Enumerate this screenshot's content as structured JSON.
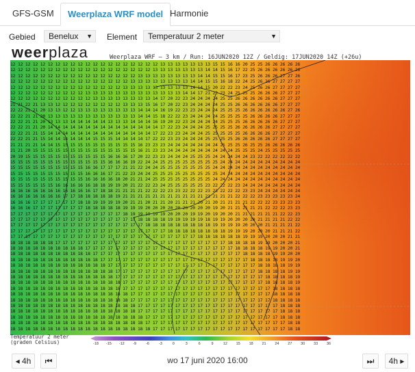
{
  "tabs": [
    {
      "label": "GFS-GSM",
      "active": false
    },
    {
      "label": "Weerplaza WRF model",
      "active": true
    },
    {
      "label": "Harmonie",
      "active": false
    }
  ],
  "controls": {
    "region_label": "Gebied",
    "region_value": "Benelux",
    "element_label": "Element",
    "element_value": "Temperatuur 2 meter"
  },
  "logo": {
    "bold": "weer",
    "rest": "plaza"
  },
  "run_info": "Weerplaza WRF — 3 km / Run: 16JUN2020 12Z / Geldig: 17JUN2020 14Z (+26u)",
  "map": {
    "rows": [
      "12 12 12 12 12 12 12 12 12 12 12 12 12 12 12 12 12 12 12 12 13 13 13 13 13 13 13 15 15 16 16 20 25 25 26 26 26 26 26",
      "12 12 12 12 12 12 12 12 12 12 12 12 12 12 12 12 12 12 12 13 13 13 13 13 13 13 14 14 15 16 17 22 25 26 26 26 26 26 26",
      "12 12 12 12 12 12 12 12 12 12 12 12 12 12 12 12 12 13 13 13 13 13 13 13 13 14 14 15 15 16 17 23 25 26 26 26 27 27 26",
      "12 12 12 12 12 12 12 12 12 12 12 12 12 12 12 12 13 13 13 13 13 13 13 13 14 14 15 15 16 18 22 24 25 26 26 27 27 27 27",
      "12 12 12 12 12 12 12 12 12 12 12 12 12 12 12 13 13 13 13 13 13 13 13 13 14 14 15 20 22 22 23 24 25 26 26 27 27 27 27",
      "12 12 12 12 12 12 12 12 12 12 13 13 13 13 13 13 13 13 13 13 13 13 13 14 14 17 21 22 23 24 25 25 25 26 26 26 27 27 27",
      "12 12 12 12 12 12 12 12 12 12 12 13 13 13 13 13 13 13 13 14 17 20 22 23 24 24 24 24 25 25 26 26 26 26 26 26 27 27 27",
      "21 21 22 21 13 13 12 12 12 12 12 12 12 12 12 13 13 13 15 16 17 20 22 23 24 24 24 24 25 25 26 26 26 26 26 26 27 27 27",
      "22 22 21 21 20 13 13 12 12 13 13 13 13 13 13 13 13 14 14 14 16 19 22 23 23 24 24 24 25 25 25 26 26 26 26 26 26 27 26",
      "22 22 21 21 20 13 13 13 13 13 13 13 13 13 13 13 13 14 14 15 18 22 22 23 24 24 24 24 25 25 25 25 26 26 26 26 27 27 27",
      "22 22 21 21 20 13 13 13 14 14 14 14 14 13 13 13 14 14 14 16 19 20 22 23 24 24 24 24 25 25 25 26 26 26 26 26 27 27 27",
      "22 22 21 21 20 14 14 14 14 14 14 14 14 14 14 14 14 14 14 14 17 22 23 24 24 24 25 25 25 25 26 26 26 26 26 27 27 27 27",
      "22 22 21 21 15 14 14 14 14 14 14 14 14 14 14 14 14 14 14 17 22 23 23 24 24 24 25 25 25 25 25 26 26 26 26 27 27 27 27",
      "22 22 21 21 15 14 14 14 14 14 14 15 15 15 14 14 14 14 17 22 22 23 23 24 24 24 25 25 25 25 26 26 26 26 26 27 27 27 27",
      "21 21 21 21 14 14 15 15 15 15 15 15 15 15 15 15 15 16 23 23 23 24 24 24 24 24 24 24 25 25 25 26 25 25 26 26 26 26 26",
      "21 21 20 15 15 15 15 15 15 15 15 15 15 15 15 15 15 16 21 23 23 24 24 24 24 24 24 24 24 24 25 25 25 24 25 25 25 25 25",
      "20 19 15 15 15 15 15 15 15 15 15 15 15 16 16 16 17 20 22 23 23 24 24 24 25 25 25 24 24 24 24 24 23 22 22 22 22 22 22",
      "15 15 15 15 15 15 15 15 15 15 15 15 15 16 16 16 19 22 24 24 25 25 25 25 25 25 25 25 24 24 24 24 24 24 24 24 24 24 24",
      "15 15 15 15 15 15 15 15 15 15 16 16 17 17 17 21 21 22 24 24 25 25 25 25 25 25 25 24 24 24 24 24 24 24 24 24 24 24 24",
      "15 15 15 15 15 15 15 15 15 15 16 16 16 17 21 22 23 24 24 25 25 25 25 25 25 25 25 25 24 24 24 24 24 24 24 24 24 24 24",
      "15 15 15 15 15 15 15 15 15 15 16 16 16 16 18 20 21 21 24 25 25 25 25 25 25 25 25 24 24 24 24 24 24 24 24 24 24 24 24",
      "15 15 15 15 15 15 16 16 16 16 16 18 18 19 19 20 21 22 22 23 24 25 25 25 25 25 23 22 22 22 23 24 24 24 24 24 24 24 24",
      "16 16 16 16 16 16 16 16 16 16 16 17 18 18 21 21 21 21 22 22 22 23 23 22 22 22 23 23 22 22 22 23 23 24 24 24 24 24 24",
      "16 16 16 16 16 16 16 17 17 18 18 18 18 18 19 21 21 21 21 21 21 21 21 21 21 21 21 21 21 21 22 22 22 23 23 23 23 23 24",
      "16 16 16 17 17 17 17 17 17 18 18 19 19 19 19 20 21 21 20 21 21 20 21 21 21 20 21 20 21 21 21 21 22 22 22 23 23 23 23",
      "16 16 16 17 17 17 17 17 17 17 18 18 18 18 18 19 19 19 20 20 20 20 20 20 20 20 20 19 20 21 21 21 21 21 22 22 22 23 23",
      "17 17 17 17 17 17 17 17 17 17 17 17 17 17 17 18 19 19 19 19 19 20 20 20 19 19 20 19 20 20 21 21 21 21 21 21 22 22 23",
      "17 17 17 17 17 17 17 17 17 17 17 17 17 17 17 17 17 18 18 18 18 19 19 19 19 19 18 19 19 20 20 20 20 21 21 21 21 22 22",
      "17 17 17 17 17 17 17 17 17 17 17 17 17 17 17 17 17 17 18 18 18 18 18 18 18 18 18 19 19 19 19 20 20 20 21 21 21 21 22",
      "17 17 17 17 17 17 17 17 17 17 17 17 17 17 17 17 17 17 17 17 17 18 18 18 18 18 18 18 18 19 19 19 20 20 20 21 21 21 22",
      "17 17 17 17 17 17 17 17 17 17 17 17 17 17 17 17 17 17 17 17 17 17 17 17 17 18 18 18 18 18 18 19 19 19 20 20 20 21 21",
      "18 18 18 18 18 18 17 17 17 17 17 17 17 17 17 17 17 17 17 17 17 17 17 17 17 17 17 17 17 18 18 18 18 19 19 20 20 20 21",
      "18 18 18 18 18 18 18 18 18 18 17 17 17 17 17 17 17 17 17 17 17 17 17 17 17 17 17 17 17 17 18 18 18 18 19 19 20 20 21",
      "18 18 18 18 18 18 18 18 18 18 18 17 17 17 17 17 17 17 17 17 17 17 17 17 17 17 17 17 17 17 17 18 18 18 18 19 19 20 20",
      "18 18 18 18 18 18 18 18 18 18 18 18 17 17 17 17 17 17 17 17 17 17 17 17 17 17 17 17 17 17 17 17 18 18 18 18 19 19 20",
      "18 18 18 18 18 18 18 18 18 18 18 18 18 17 17 17 17 17 17 17 17 17 17 17 17 17 17 17 17 17 17 17 17 18 18 18 18 19 19",
      "18 18 18 18 18 18 18 18 18 18 18 18 18 18 17 17 17 17 17 17 17 17 17 17 17 17 17 17 17 17 17 17 17 18 18 18 18 19 19",
      "18 18 18 18 18 18 18 18 18 18 18 18 18 18 17 17 17 17 17 17 17 17 17 17 17 17 17 17 17 17 17 17 17 17 18 18 18 18 19",
      "18 18 18 18 18 18 18 18 18 18 18 18 18 18 18 17 17 17 17 17 17 17 17 17 17 17 17 17 17 17 17 17 17 17 18 18 18 18 19",
      "18 18 18 18 18 18 18 18 18 18 18 18 18 18 18 17 17 17 17 17 17 17 17 17 17 17 17 17 17 17 17 17 17 17 17 18 18 18 18",
      "18 18 18 18 18 18 18 18 18 18 18 18 18 18 18 18 17 17 17 17 17 17 17 17 17 17 17 17 17 17 17 17 17 17 17 18 18 18 18",
      "18 18 18 18 18 18 18 18 18 18 18 18 18 18 18 18 17 17 17 17 17 17 17 17 17 17 17 17 17 17 17 17 17 17 17 18 18 18 18",
      "18 18 18 18 18 18 18 18 18 18 18 18 18 18 18 18 18 17 17 17 17 17 17 17 17 17 17 17 17 17 17 17 17 17 17 17 18 18 18",
      "18 18 18 18 18 18 18 18 18 18 18 18 18 18 18 18 18 17 17 17 17 17 17 17 17 17 17 17 17 17 17 17 17 17 17 17 18 18 18",
      "18 18 18 18 18 18 18 18 18 18 18 18 18 18 18 18 18 18 17 17 17 17 17 17 17 17 17 17 17 17 17 17 17 17 17 17 18 18 18",
      "18 18 18 18 18 18 18 18 18 18 18 18 18 18 18 18 18 18 17 17 17 17 17 17 17 17 17 17 17 17 17 17 17 17 17 17 17 18 18",
      "18 18 18 18 18 18 18 18 18 18 18 18 18 18 18 18 18 18 18 17 17 17 17 17 17 17 17 17 17 17 17 17 17 17 17 17 17 18 18"
    ]
  },
  "legend": {
    "title_line1": "Temperatuur 2 meter",
    "title_line2": "(graden Celsius)",
    "ticks": [
      "-18",
      "-15",
      "-12",
      "-9",
      "-6",
      "-3",
      "0",
      "3",
      "6",
      "9",
      "12",
      "15",
      "18",
      "21",
      "24",
      "27",
      "30",
      "33",
      "36"
    ]
  },
  "nav": {
    "back_label": "4h",
    "first_icon": "skip-back-icon",
    "datetime": "wo 17 juni 2020 16:00",
    "last_icon": "skip-forward-icon",
    "forward_label": "4h"
  }
}
